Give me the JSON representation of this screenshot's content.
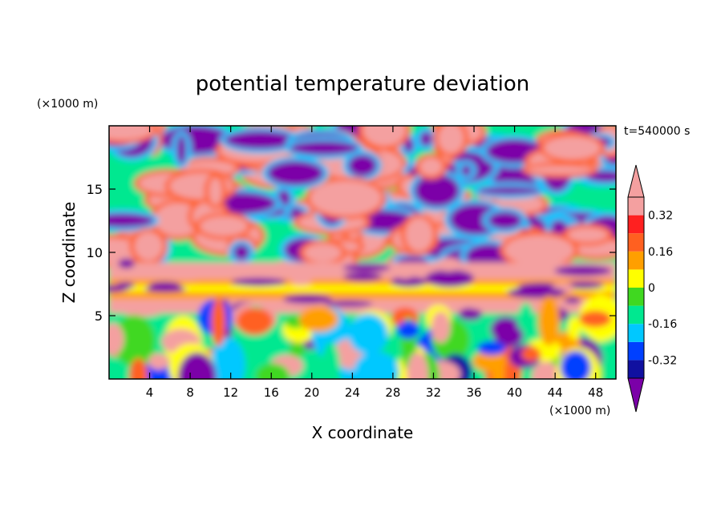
{
  "chart_data": {
    "type": "heatmap",
    "title": "potential temperature deviation",
    "xlabel": "X coordinate",
    "ylabel": "Z coordinate",
    "x_unit": "(×1000 m)",
    "y_unit": "(×1000 m)",
    "time_label": "t=540000 s",
    "xlim": [
      0,
      50
    ],
    "ylim": [
      0,
      20
    ],
    "x_ticks": [
      4,
      8,
      12,
      16,
      20,
      24,
      28,
      32,
      36,
      40,
      44,
      48
    ],
    "y_ticks": [
      5,
      10,
      15
    ],
    "colorbar": {
      "levels": [
        -0.4,
        -0.32,
        -0.24,
        -0.16,
        -0.08,
        0,
        0.08,
        0.16,
        0.24,
        0.32,
        0.4
      ],
      "tick_labels": [
        "-0.32",
        "-0.16",
        "0",
        "0.16",
        "0.32"
      ],
      "tick_values": [
        -0.32,
        -0.16,
        0,
        0.16,
        0.32
      ],
      "colors": [
        "#7b00a8",
        "#1010a0",
        "#0040ff",
        "#00c8ff",
        "#00e890",
        "#40d820",
        "#ffff00",
        "#ff9f00",
        "#ff6020",
        "#ff2020",
        "#f4a0a0"
      ]
    },
    "features": [
      {
        "layer": "z 0-5",
        "description": "mixed convective cells"
      },
      {
        "layer": "z 6-8",
        "description": "horizontal stable band near 0"
      },
      {
        "layer": "z 9-20",
        "description": "alternating positive (pink) and negative (purple) patches"
      }
    ]
  }
}
